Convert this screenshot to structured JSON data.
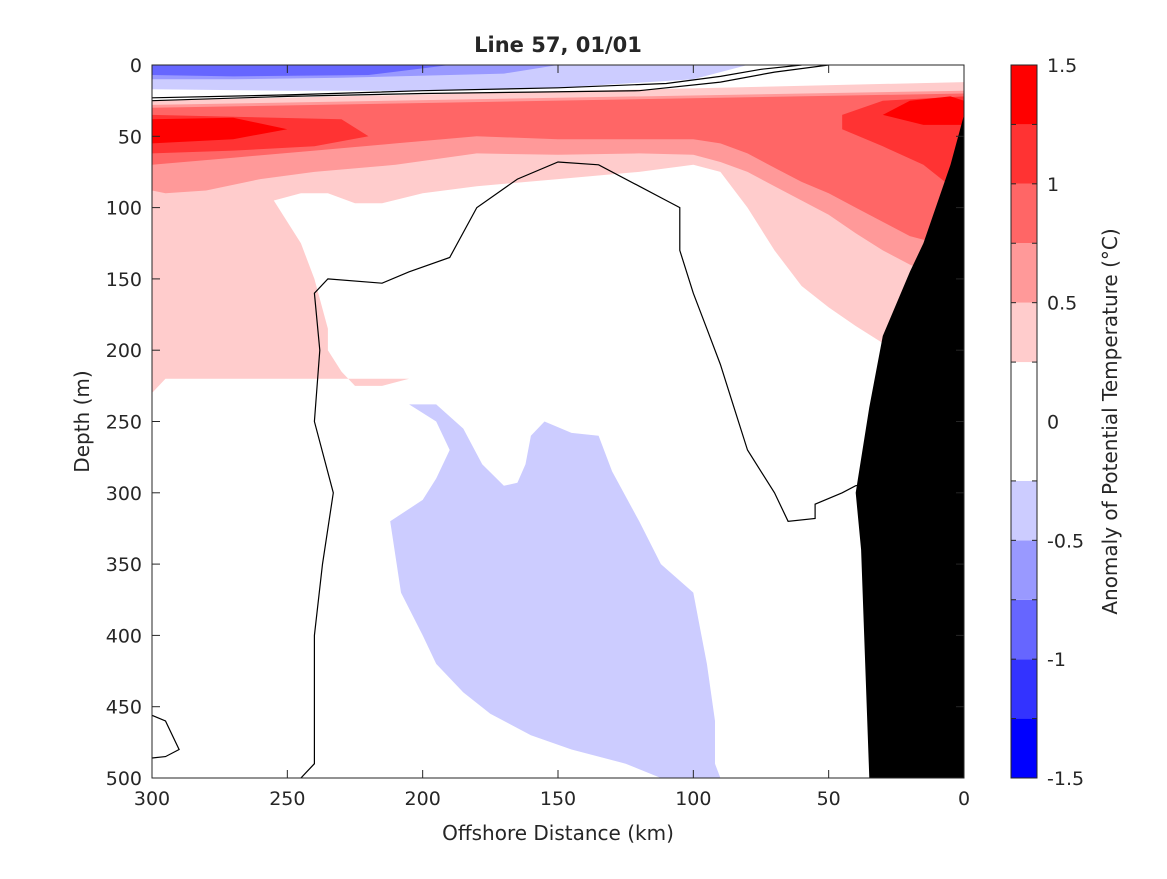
{
  "chart_data": {
    "type": "contour",
    "title": "Line 57, 01/01",
    "xlabel": "Offshore Distance (km)",
    "ylabel": "Depth (m)",
    "colorbar_label": "Anomaly of Potential Temperature (°C)",
    "xlim": [
      300,
      0
    ],
    "ylim": [
      500,
      0
    ],
    "x_reversed": true,
    "y_reversed": true,
    "xticks": [
      "300",
      "250",
      "200",
      "150",
      "100",
      "50",
      "0"
    ],
    "yticks": [
      "0",
      "50",
      "100",
      "150",
      "200",
      "250",
      "300",
      "350",
      "400",
      "450",
      "500"
    ],
    "colorbar_ticks": [
      "1.5",
      "1",
      "0.5",
      "0",
      "-0.5",
      "-1",
      "-1.5"
    ],
    "colorbar_range": [
      -1.5,
      1.5
    ],
    "contour_levels": [
      -1.5,
      -1.25,
      -1.0,
      -0.75,
      -0.5,
      -0.25,
      0.25,
      0.5,
      0.75,
      1.0,
      1.25,
      1.5
    ],
    "colors": {
      "neg_deep": "#0000ff",
      "neg_strong": "#3333ff",
      "neg_mid": "#6666ff",
      "neg_light": "#9999ff",
      "neg_faint": "#ccccff",
      "neutral": "#ffffff",
      "pos_faint": "#ffcccc",
      "pos_light": "#ff9999",
      "pos_mid": "#ff6666",
      "pos_strong": "#ff3333",
      "pos_deep": "#ff0000",
      "bathymetry": "#000000",
      "zero_contour": "#000000"
    },
    "regions": [
      {
        "band": "pos_faint",
        "points": [
          [
            300,
            25
          ],
          [
            0,
            12
          ],
          [
            0,
            210
          ],
          [
            10,
            212
          ],
          [
            20,
            205
          ],
          [
            30,
            195
          ],
          [
            40,
            183
          ],
          [
            50,
            170
          ],
          [
            60,
            155
          ],
          [
            70,
            130
          ],
          [
            80,
            100
          ],
          [
            90,
            75
          ],
          [
            100,
            70
          ],
          [
            120,
            75
          ],
          [
            150,
            80
          ],
          [
            180,
            85
          ],
          [
            200,
            90
          ],
          [
            215,
            97
          ],
          [
            225,
            97
          ],
          [
            235,
            90
          ],
          [
            245,
            90
          ],
          [
            255,
            95
          ],
          [
            245,
            125
          ],
          [
            240,
            150
          ],
          [
            235,
            185
          ],
          [
            235,
            200
          ],
          [
            230,
            215
          ],
          [
            225,
            225
          ],
          [
            215,
            225
          ],
          [
            205,
            220
          ],
          [
            295,
            220
          ],
          [
            300,
            230
          ]
        ]
      },
      {
        "band": "pos_light",
        "points": [
          [
            300,
            28
          ],
          [
            0,
            18
          ],
          [
            0,
            148
          ],
          [
            10,
            148
          ],
          [
            20,
            140
          ],
          [
            30,
            130
          ],
          [
            40,
            118
          ],
          [
            50,
            105
          ],
          [
            60,
            95
          ],
          [
            70,
            85
          ],
          [
            80,
            75
          ],
          [
            90,
            68
          ],
          [
            100,
            63
          ],
          [
            120,
            62
          ],
          [
            150,
            63
          ],
          [
            180,
            62
          ],
          [
            210,
            70
          ],
          [
            240,
            75
          ],
          [
            260,
            80
          ],
          [
            280,
            88
          ],
          [
            295,
            90
          ],
          [
            300,
            88
          ]
        ]
      },
      {
        "band": "pos_mid",
        "points": [
          [
            300,
            30
          ],
          [
            0,
            20
          ],
          [
            0,
            125
          ],
          [
            10,
            125
          ],
          [
            20,
            120
          ],
          [
            30,
            110
          ],
          [
            40,
            100
          ],
          [
            50,
            90
          ],
          [
            60,
            82
          ],
          [
            70,
            72
          ],
          [
            80,
            62
          ],
          [
            90,
            55
          ],
          [
            100,
            52
          ],
          [
            120,
            52
          ],
          [
            150,
            52
          ],
          [
            180,
            50
          ],
          [
            210,
            55
          ],
          [
            240,
            60
          ],
          [
            270,
            65
          ],
          [
            300,
            70
          ]
        ]
      },
      {
        "band": "pos_strong",
        "points": [
          [
            300,
            35
          ],
          [
            230,
            38
          ],
          [
            220,
            50
          ],
          [
            240,
            57
          ],
          [
            270,
            60
          ],
          [
            300,
            62
          ]
        ]
      },
      {
        "band": "pos_strong",
        "points": [
          [
            0,
            22
          ],
          [
            30,
            25
          ],
          [
            45,
            35
          ],
          [
            45,
            45
          ],
          [
            30,
            57
          ],
          [
            15,
            70
          ],
          [
            5,
            85
          ],
          [
            0,
            95
          ]
        ]
      },
      {
        "band": "pos_deep",
        "points": [
          [
            300,
            38
          ],
          [
            270,
            37
          ],
          [
            250,
            45
          ],
          [
            270,
            52
          ],
          [
            300,
            55
          ]
        ]
      },
      {
        "band": "pos_deep",
        "points": [
          [
            5,
            22
          ],
          [
            20,
            25
          ],
          [
            30,
            35
          ],
          [
            15,
            42
          ],
          [
            0,
            42
          ],
          [
            0,
            25
          ]
        ]
      },
      {
        "band": "neg_faint",
        "points": [
          [
            300,
            0
          ],
          [
            80,
            0
          ],
          [
            100,
            10
          ],
          [
            150,
            16
          ],
          [
            200,
            18
          ],
          [
            250,
            18
          ],
          [
            300,
            17
          ]
        ]
      },
      {
        "band": "neg_light",
        "points": [
          [
            300,
            0
          ],
          [
            150,
            0
          ],
          [
            170,
            6
          ],
          [
            230,
            9
          ],
          [
            270,
            10
          ],
          [
            300,
            10
          ]
        ]
      },
      {
        "band": "neg_mid",
        "points": [
          [
            300,
            0
          ],
          [
            190,
            0
          ],
          [
            220,
            7
          ],
          [
            270,
            8
          ],
          [
            300,
            7
          ]
        ]
      },
      {
        "band": "neg_faint",
        "points": [
          [
            205,
            238
          ],
          [
            195,
            238
          ],
          [
            185,
            255
          ],
          [
            178,
            280
          ],
          [
            170,
            295
          ],
          [
            165,
            293
          ],
          [
            162,
            280
          ],
          [
            160,
            260
          ],
          [
            155,
            250
          ],
          [
            145,
            258
          ],
          [
            135,
            260
          ],
          [
            130,
            285
          ],
          [
            120,
            320
          ],
          [
            112,
            350
          ],
          [
            100,
            370
          ],
          [
            98,
            390
          ],
          [
            95,
            420
          ],
          [
            92,
            460
          ],
          [
            92,
            490
          ],
          [
            90,
            500
          ],
          [
            112,
            500
          ],
          [
            125,
            490
          ],
          [
            145,
            480
          ],
          [
            160,
            470
          ],
          [
            175,
            455
          ],
          [
            185,
            440
          ],
          [
            195,
            420
          ],
          [
            200,
            400
          ],
          [
            208,
            370
          ],
          [
            210,
            345
          ],
          [
            212,
            320
          ],
          [
            200,
            305
          ],
          [
            195,
            290
          ],
          [
            190,
            270
          ],
          [
            195,
            250
          ]
        ]
      }
    ],
    "zero_contours": [
      [
        [
          300,
          25
        ],
        [
          250,
          22
        ],
        [
          200,
          20
        ],
        [
          160,
          19
        ],
        [
          120,
          18
        ],
        [
          90,
          12
        ],
        [
          70,
          5
        ],
        [
          50,
          0
        ]
      ],
      [
        [
          300,
          23
        ],
        [
          250,
          21
        ],
        [
          200,
          18
        ],
        [
          150,
          16
        ],
        [
          110,
          13
        ],
        [
          90,
          8
        ],
        [
          75,
          3
        ],
        [
          60,
          0
        ]
      ],
      [
        [
          245,
          500
        ],
        [
          240,
          490
        ],
        [
          240,
          400
        ],
        [
          237,
          350
        ],
        [
          233,
          300
        ],
        [
          240,
          250
        ],
        [
          238,
          200
        ],
        [
          240,
          160
        ],
        [
          235,
          150
        ],
        [
          215,
          153
        ],
        [
          205,
          145
        ],
        [
          190,
          135
        ],
        [
          180,
          100
        ],
        [
          165,
          80
        ],
        [
          150,
          68
        ],
        [
          135,
          70
        ],
        [
          120,
          85
        ],
        [
          110,
          95
        ],
        [
          105,
          100
        ],
        [
          105,
          130
        ],
        [
          100,
          160
        ],
        [
          95,
          185
        ],
        [
          90,
          210
        ],
        [
          85,
          240
        ],
        [
          80,
          270
        ],
        [
          70,
          300
        ],
        [
          65,
          320
        ],
        [
          55,
          318
        ],
        [
          55,
          308
        ],
        [
          45,
          300
        ],
        [
          40,
          295
        ],
        [
          30,
          292
        ]
      ],
      [
        [
          300,
          456
        ],
        [
          295,
          460
        ],
        [
          290,
          480
        ],
        [
          295,
          485
        ],
        [
          300,
          486
        ]
      ]
    ],
    "bathymetry": [
      [
        0,
        35
      ],
      [
        5,
        70
      ],
      [
        15,
        125
      ],
      [
        20,
        145
      ],
      [
        30,
        190
      ],
      [
        35,
        240
      ],
      [
        40,
        300
      ],
      [
        38,
        340
      ],
      [
        35,
        500
      ],
      [
        0,
        500
      ]
    ]
  }
}
